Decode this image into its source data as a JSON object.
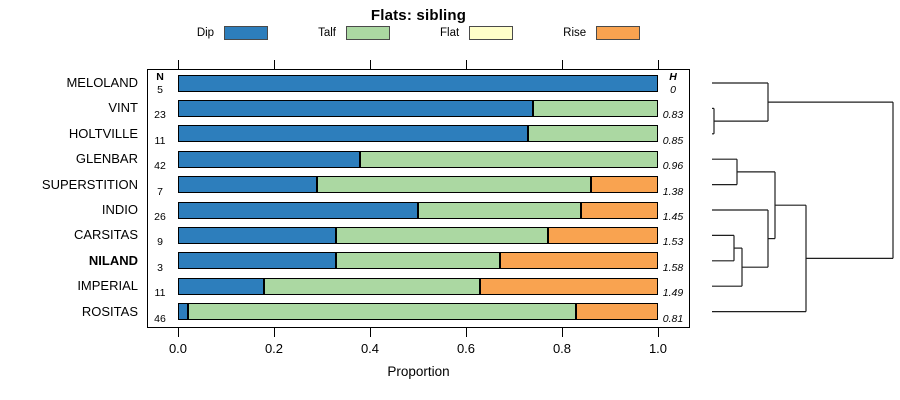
{
  "title": "Flats: sibling",
  "legend": {
    "items": [
      {
        "label": "Dip",
        "color": "#2d7ebc"
      },
      {
        "label": "Talf",
        "color": "#abd8a2"
      },
      {
        "label": "Flat",
        "color": "#ffffc9"
      },
      {
        "label": "Rise",
        "color": "#f9a350"
      }
    ]
  },
  "columns": {
    "n_header": "N",
    "h_header": "H"
  },
  "chart_data": {
    "type": "bar",
    "stacked": true,
    "orientation": "horizontal",
    "title": "Flats: sibling",
    "xlabel": "Proportion",
    "xlim": [
      0,
      1
    ],
    "xticks": [
      0,
      0.2,
      0.4,
      0.6,
      0.8,
      1.0
    ],
    "xtick_labels": [
      "0.0",
      "0.2",
      "0.4",
      "0.6",
      "0.8",
      "1.0"
    ],
    "segment_keys": [
      "dip",
      "talf",
      "flat",
      "rise"
    ],
    "rows": [
      {
        "label": "MELOLAND",
        "n": "5",
        "h": "0",
        "bold": false,
        "dip": 1.0,
        "talf": 0.0,
        "flat": 0,
        "rise": 0.0
      },
      {
        "label": "VINT",
        "n": "23",
        "h": "0.83",
        "bold": false,
        "dip": 0.74,
        "talf": 0.26,
        "flat": 0,
        "rise": 0.0
      },
      {
        "label": "HOLTVILLE",
        "n": "11",
        "h": "0.85",
        "bold": false,
        "dip": 0.73,
        "talf": 0.27,
        "flat": 0,
        "rise": 0.0
      },
      {
        "label": "GLENBAR",
        "n": "42",
        "h": "0.96",
        "bold": false,
        "dip": 0.38,
        "talf": 0.62,
        "flat": 0,
        "rise": 0.0
      },
      {
        "label": "SUPERSTITION",
        "n": "7",
        "h": "1.38",
        "bold": false,
        "dip": 0.29,
        "talf": 0.57,
        "flat": 0,
        "rise": 0.14
      },
      {
        "label": "INDIO",
        "n": "26",
        "h": "1.45",
        "bold": false,
        "dip": 0.5,
        "talf": 0.34,
        "flat": 0,
        "rise": 0.16
      },
      {
        "label": "CARSITAS",
        "n": "9",
        "h": "1.53",
        "bold": false,
        "dip": 0.33,
        "talf": 0.44,
        "flat": 0,
        "rise": 0.23
      },
      {
        "label": "NILAND",
        "n": "3",
        "h": "1.58",
        "bold": true,
        "dip": 0.33,
        "talf": 0.34,
        "flat": 0,
        "rise": 0.33
      },
      {
        "label": "IMPERIAL",
        "n": "11",
        "h": "1.49",
        "bold": false,
        "dip": 0.18,
        "talf": 0.45,
        "flat": 0,
        "rise": 0.37
      },
      {
        "label": "ROSITAS",
        "n": "46",
        "h": "0.81",
        "bold": false,
        "dip": 0.02,
        "talf": 0.81,
        "flat": 0,
        "rise": 0.17
      }
    ],
    "dendrogram": {
      "leaf_order": [
        "MELOLAND",
        "VINT",
        "HOLTVILLE",
        "GLENBAR",
        "SUPERSTITION",
        "INDIO",
        "CARSITAS",
        "NILAND",
        "IMPERIAL",
        "ROSITAS"
      ],
      "line_color": "#1f1f1f",
      "segments": [
        [
          22,
          23,
          78,
          23
        ],
        [
          22,
          48.4,
          24,
          48.4
        ],
        [
          22,
          73.8,
          24,
          73.8
        ],
        [
          24,
          61.1,
          78,
          61.1
        ],
        [
          78,
          42.1,
          203,
          42.1
        ],
        [
          22,
          99.2,
          47,
          99.2
        ],
        [
          22,
          124.6,
          47,
          124.6
        ],
        [
          47,
          111.9,
          85,
          111.9
        ],
        [
          22,
          150,
          78,
          150
        ],
        [
          22,
          175.4,
          44,
          175.4
        ],
        [
          22,
          200.8,
          44,
          200.8
        ],
        [
          44,
          188.1,
          52,
          188.1
        ],
        [
          22,
          226.2,
          52,
          226.2
        ],
        [
          52,
          207.2,
          78,
          207.2
        ],
        [
          78,
          178.6,
          85,
          178.6
        ],
        [
          85,
          145.2,
          116,
          145.2
        ],
        [
          22,
          251.6,
          116,
          251.6
        ],
        [
          116,
          198.4,
          203,
          198.4
        ],
        [
          24,
          48.4,
          24,
          73.8
        ],
        [
          78,
          23,
          78,
          61.1
        ],
        [
          47,
          99.2,
          47,
          124.6
        ],
        [
          44,
          175.4,
          44,
          200.8
        ],
        [
          52,
          188.1,
          52,
          226.2
        ],
        [
          78,
          150,
          78,
          207.2
        ],
        [
          85,
          111.9,
          85,
          178.6
        ],
        [
          116,
          145.2,
          116,
          251.6
        ],
        [
          203,
          42.1,
          203,
          198.4
        ]
      ]
    }
  }
}
